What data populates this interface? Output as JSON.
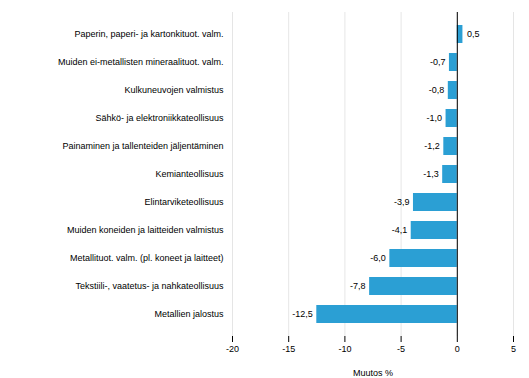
{
  "chart_data": {
    "type": "bar",
    "orientation": "horizontal",
    "xlabel": "Muutos %",
    "categories": [
      "Metallien jalostus",
      "Tekstiili-, vaatetus- ja nahkateollisuus",
      "Metallituot. valm. (pl. koneet ja laitteet)",
      "Muiden koneiden ja laitteiden valmistus",
      "Elintarviketeollisuus",
      "Kemianteollisuus",
      "Painaminen ja tallenteiden jäljentäminen",
      "Sähkö- ja elektroniikkateollisuus",
      "Kulkuneuvojen valmistus",
      "Muiden ei-metallisten mineraalituot. valm.",
      "Paperin, paperi- ja kartonkituot. valm."
    ],
    "values": [
      -12.5,
      -7.8,
      -6.0,
      -4.1,
      -3.9,
      -1.3,
      -1.2,
      -1.0,
      -0.8,
      -0.7,
      0.5
    ],
    "value_labels": [
      "-12,5",
      "-7,8",
      "-6,0",
      "-4,1",
      "-3,9",
      "-1,3",
      "-1,2",
      "-1,0",
      "-0,8",
      "-0,7",
      "0,5"
    ],
    "data_labels": true,
    "color": "#2b9fd4",
    "xlim": [
      -20,
      5
    ],
    "xticks": [
      -20,
      -15,
      -10,
      -5,
      0,
      5
    ],
    "grid": true
  }
}
